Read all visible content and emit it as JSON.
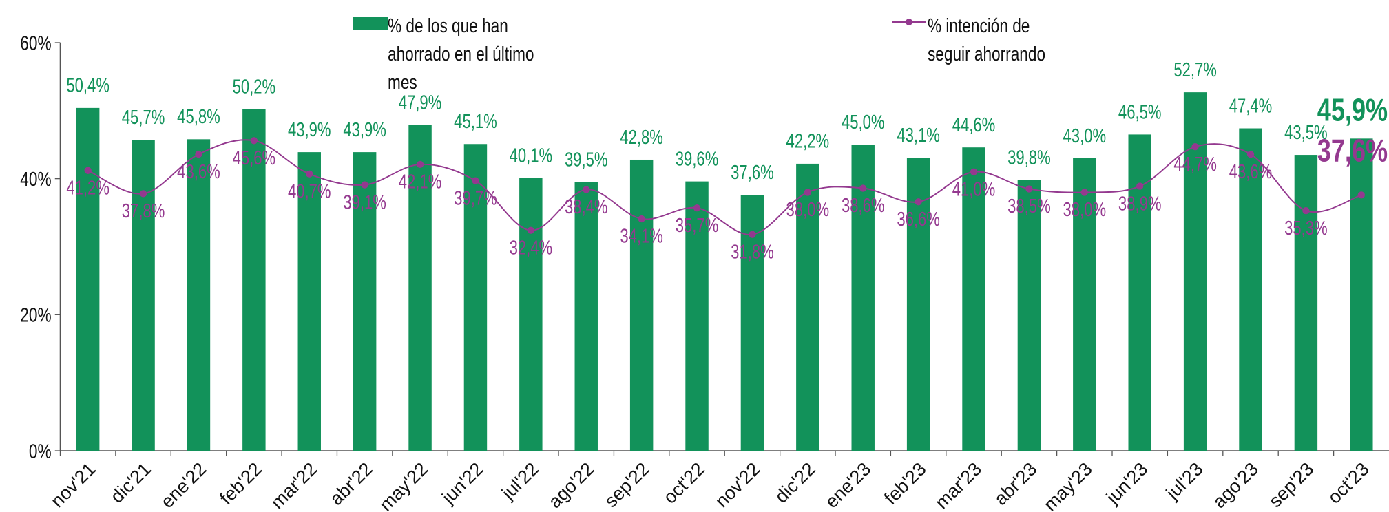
{
  "chart_data": {
    "type": "bar",
    "categories": [
      "nov'21",
      "dic'21",
      "ene'22",
      "feb'22",
      "mar'22",
      "abr'22",
      "may'22",
      "jun'22",
      "jul'22",
      "ago'22",
      "sep'22",
      "oct'22",
      "nov'22",
      "dic'22",
      "ene'23",
      "feb'23",
      "mar'23",
      "abr'23",
      "may'23",
      "jun'23",
      "jul'23",
      "ago'23",
      "sep'23",
      "oct'23"
    ],
    "series": [
      {
        "name": "% de los que han ahorrado en el último mes",
        "type": "bar",
        "color": "#12925a",
        "values": [
          50.4,
          45.7,
          45.8,
          50.2,
          43.9,
          43.9,
          47.9,
          45.1,
          40.1,
          39.5,
          42.8,
          39.6,
          37.6,
          42.2,
          45.0,
          43.1,
          44.6,
          39.8,
          43.0,
          46.5,
          52.7,
          47.4,
          43.5,
          45.9
        ],
        "value_labels": [
          "50,4%",
          "45,7%",
          "45,8%",
          "50,2%",
          "43,9%",
          "43,9%",
          "47,9%",
          "45,1%",
          "40,1%",
          "39,5%",
          "42,8%",
          "39,6%",
          "37,6%",
          "42,2%",
          "45,0%",
          "43,1%",
          "44,6%",
          "39,8%",
          "43,0%",
          "46,5%",
          "52,7%",
          "47,4%",
          "43,5%",
          "45,9%"
        ]
      },
      {
        "name": "% intención de seguir ahorrando",
        "type": "line",
        "color": "#94398f",
        "values": [
          41.2,
          37.8,
          43.6,
          45.6,
          40.7,
          39.1,
          42.1,
          39.7,
          32.4,
          38.4,
          34.1,
          35.7,
          31.8,
          38.0,
          38.6,
          36.6,
          41.0,
          38.5,
          38.0,
          38.9,
          44.7,
          43.6,
          35.3,
          37.6
        ],
        "value_labels": [
          "41,2%",
          "37,8%",
          "43,6%",
          "45,6%",
          "40,7%",
          "39,1%",
          "42,1%",
          "39,7%",
          "32,4%",
          "38,4%",
          "34,1%",
          "35,7%",
          "31,8%",
          "38,0%",
          "38,6%",
          "36,6%",
          "41,0%",
          "38,5%",
          "38,0%",
          "38,9%",
          "44,7%",
          "43,6%",
          "35,3%",
          "37,6%"
        ]
      }
    ],
    "ylim": [
      0,
      60
    ],
    "yticks": [
      {
        "value": 0,
        "label": "0%"
      },
      {
        "value": 20,
        "label": "20%"
      },
      {
        "value": 40,
        "label": "40%"
      },
      {
        "value": 60,
        "label": "60%"
      }
    ]
  }
}
